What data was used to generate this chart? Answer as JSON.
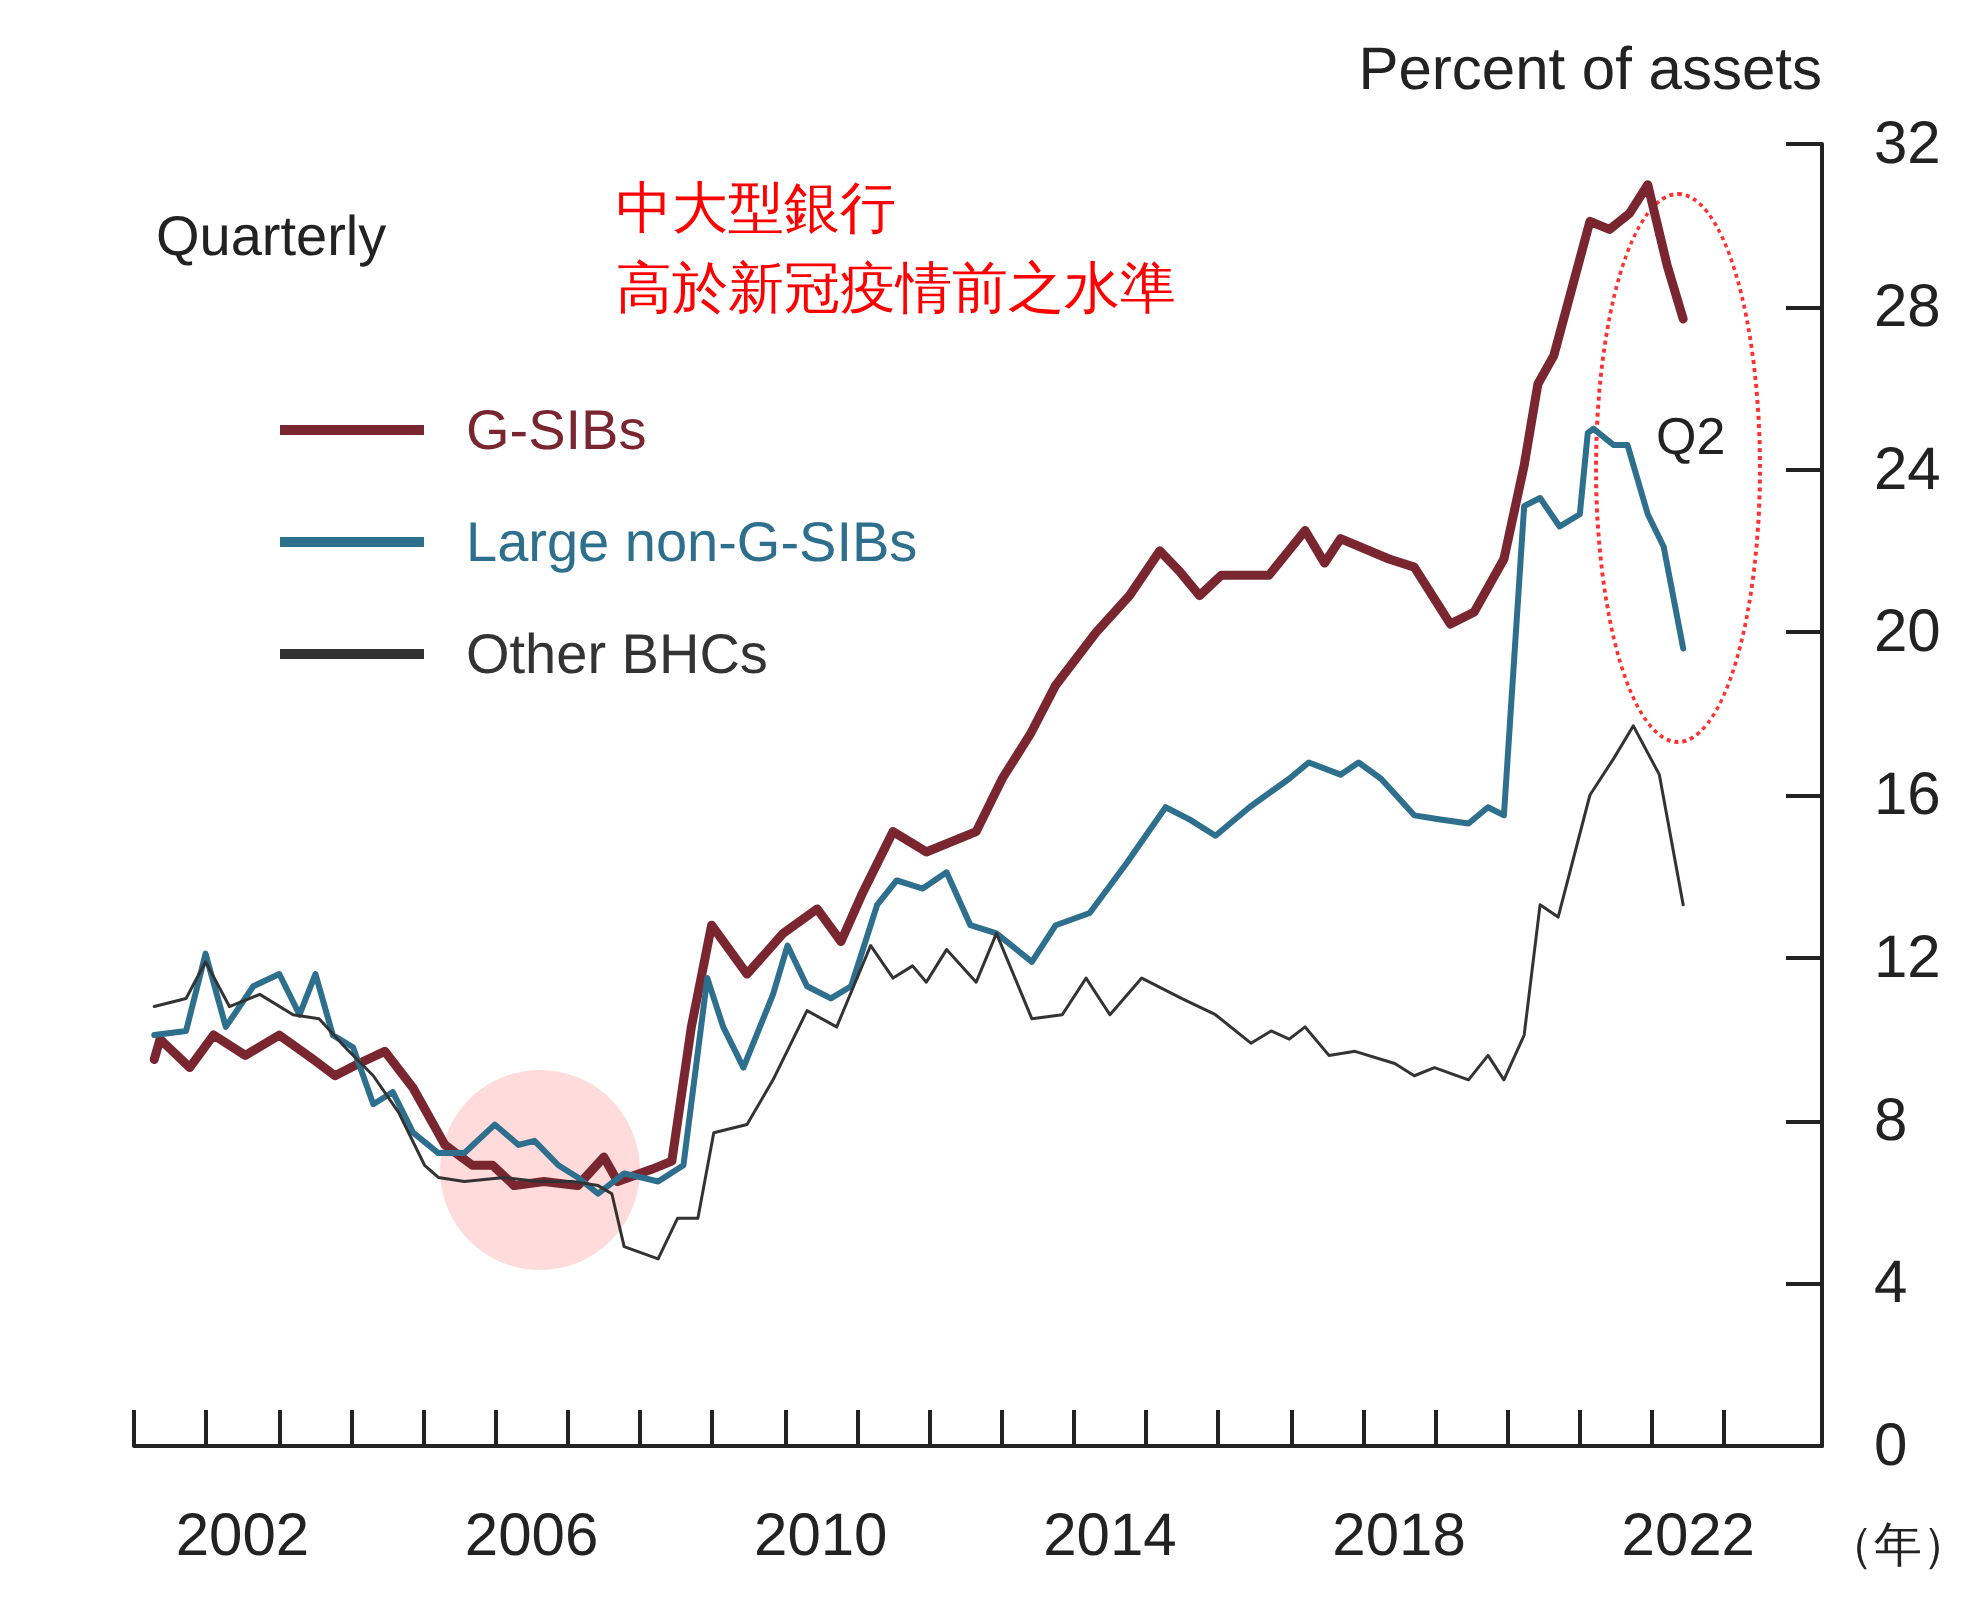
{
  "chart_data": {
    "type": "line",
    "ylabel": "Percent of assets",
    "xlabel": "（年）",
    "annotations": [
      "Quarterly",
      "中大型銀行",
      "高於新冠疫情前之水準",
      "Q2"
    ],
    "legend": "top left",
    "xlim": [
      2001,
      2024.35
    ],
    "xticks": [
      {
        "value": 2002.5,
        "label": "2002"
      },
      {
        "value": 2006.5,
        "label": "2006"
      },
      {
        "value": 2010.5,
        "label": "2010"
      },
      {
        "value": 2014.5,
        "label": "2014"
      },
      {
        "value": 2018.5,
        "label": "2018"
      },
      {
        "value": 2022.5,
        "label": "2022"
      }
    ],
    "ylim": [
      0,
      32
    ],
    "yticks": [
      0,
      4,
      8,
      12,
      16,
      20,
      24,
      28,
      32
    ],
    "series": [
      {
        "name": "G-SIBs",
        "color": "#7a2630",
        "x": [
          2001.28,
          2001.36,
          2001.77,
          2002.1,
          2002.54,
          2003.01,
          2003.48,
          2003.78,
          2004.11,
          2004.47,
          2004.86,
          2005.3,
          2005.68,
          2005.96,
          2006.26,
          2006.67,
          2007.14,
          2007.5,
          2007.69,
          2008.16,
          2008.44,
          2008.71,
          2008.99,
          2009.48,
          2009.98,
          2010.45,
          2010.78,
          2011.08,
          2011.5,
          2011.96,
          2012.65,
          2013.01,
          2013.4,
          2013.75,
          2014.31,
          2014.77,
          2015.19,
          2015.46,
          2015.74,
          2016.04,
          2016.7,
          2017.2,
          2017.47,
          2017.69,
          2018.36,
          2018.71,
          2019.21,
          2019.54,
          2019.95,
          2020.23,
          2020.42,
          2020.64,
          2021.14,
          2021.41,
          2021.69,
          2021.94,
          2022.21,
          2022.43
        ],
        "values": [
          9.5,
          10,
          9.3,
          10.1,
          9.6,
          10.1,
          9.5,
          9.1,
          9.4,
          9.7,
          8.8,
          7.4,
          6.9,
          6.9,
          6.4,
          6.5,
          6.4,
          7.1,
          6.5,
          6.8,
          7,
          10.3,
          12.8,
          11.6,
          12.6,
          13.2,
          12.4,
          13.6,
          15.1,
          14.6,
          15.1,
          16.4,
          17.5,
          18.7,
          20,
          20.9,
          22,
          21.5,
          20.9,
          21.4,
          21.4,
          22.5,
          21.7,
          22.3,
          21.8,
          21.6,
          20.2,
          20.5,
          21.8,
          24.1,
          26.1,
          26.8,
          30.1,
          29.9,
          30.3,
          31,
          29,
          27.7
        ]
      },
      {
        "name": "Large non-G-SIBs",
        "color": "#2e6f8e",
        "x": [
          2001.28,
          2001.72,
          2001.99,
          2002.27,
          2002.65,
          2003.01,
          2003.29,
          2003.51,
          2003.75,
          2004.03,
          2004.31,
          2004.58,
          2004.86,
          2005.21,
          2005.57,
          2005.99,
          2006.32,
          2006.54,
          2006.87,
          2007.14,
          2007.42,
          2007.78,
          2008.25,
          2008.6,
          2008.93,
          2009.15,
          2009.43,
          2009.84,
          2010.04,
          2010.31,
          2010.64,
          2010.92,
          2011.28,
          2011.55,
          2011.91,
          2012.24,
          2012.57,
          2012.93,
          2013.42,
          2013.75,
          2014.22,
          2014.72,
          2015.27,
          2015.6,
          2015.96,
          2016.43,
          2016.98,
          2017.25,
          2017.69,
          2017.94,
          2018.25,
          2018.71,
          2019.07,
          2019.46,
          2019.73,
          2019.95,
          2020.23,
          2020.45,
          2020.72,
          2021,
          2021.11,
          2021.19,
          2021.47,
          2021.66,
          2021.94,
          2022.16,
          2022.43
        ],
        "values": [
          10.1,
          10.2,
          12.1,
          10.3,
          11.3,
          11.6,
          10.6,
          11.6,
          10.1,
          9.8,
          8.4,
          8.7,
          7.7,
          7.2,
          7.2,
          7.9,
          7.4,
          7.5,
          6.9,
          6.6,
          6.2,
          6.7,
          6.5,
          6.9,
          11.5,
          10.3,
          9.3,
          11.1,
          12.3,
          11.3,
          11,
          11.3,
          13.3,
          13.9,
          13.7,
          14.1,
          12.8,
          12.6,
          11.9,
          12.8,
          13.1,
          14.3,
          15.7,
          15.4,
          15,
          15.7,
          16.4,
          16.8,
          16.5,
          16.8,
          16.4,
          15.5,
          15.4,
          15.3,
          15.7,
          15.5,
          23.1,
          23.3,
          22.6,
          22.9,
          24.9,
          25,
          24.6,
          24.6,
          22.9,
          22.1,
          19.6
        ]
      },
      {
        "name": "Other BHCs",
        "color": "#333333",
        "x": [
          2001.28,
          2001.72,
          2001.99,
          2002.32,
          2002.74,
          2003.2,
          2003.56,
          2003.92,
          2004.31,
          2004.66,
          2005.02,
          2005.21,
          2005.57,
          2006.12,
          2006.59,
          2007.06,
          2007.42,
          2007.61,
          2007.78,
          2008.25,
          2008.52,
          2008.8,
          2009.02,
          2009.48,
          2009.84,
          2010.31,
          2010.72,
          2011.19,
          2011.5,
          2011.77,
          2011.96,
          2012.24,
          2012.65,
          2012.93,
          2013.42,
          2013.84,
          2014.17,
          2014.5,
          2014.94,
          2015.49,
          2015.96,
          2016.45,
          2016.73,
          2016.98,
          2017.2,
          2017.53,
          2017.89,
          2018.44,
          2018.71,
          2018.99,
          2019.46,
          2019.73,
          2019.95,
          2020.23,
          2020.45,
          2020.7,
          2021.14,
          2021.47,
          2021.74,
          2022.1,
          2022.43
        ],
        "values": [
          10.8,
          11,
          11.9,
          10.8,
          11.1,
          10.6,
          10.5,
          9.8,
          9.1,
          8.2,
          6.9,
          6.6,
          6.5,
          6.6,
          6.5,
          6.5,
          6.4,
          6.2,
          4.9,
          4.6,
          5.6,
          5.6,
          7.7,
          7.9,
          9,
          10.7,
          10.3,
          12.3,
          11.5,
          11.8,
          11.4,
          12.2,
          11.4,
          12.6,
          10.5,
          10.6,
          11.5,
          10.6,
          11.5,
          11,
          10.6,
          9.9,
          10.2,
          10,
          10.3,
          9.6,
          9.7,
          9.4,
          9.1,
          9.3,
          9,
          9.6,
          9,
          10.1,
          13.3,
          13,
          16,
          16.9,
          17.7,
          16.5,
          13.3
        ]
      }
    ]
  }
}
